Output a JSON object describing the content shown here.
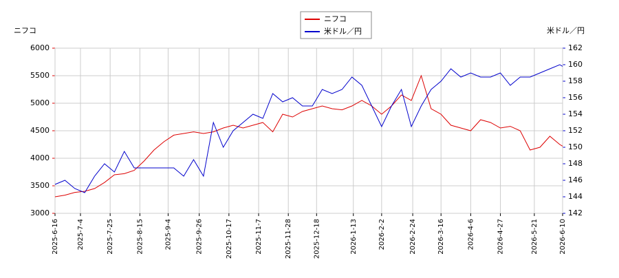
{
  "chart_data": {
    "type": "line",
    "y_label": "ニフコ",
    "y2_label": "米ドル／円",
    "x": [
      "2025-6-16",
      "2025-6-23",
      "2025-6-30",
      "2025-7-7",
      "2025-7-14",
      "2025-7-21",
      "2025-7-28",
      "2025-8-4",
      "2025-8-11",
      "2025-8-18",
      "2025-8-25",
      "2025-9-1",
      "2025-9-8",
      "2025-9-15",
      "2025-9-22",
      "2025-9-29",
      "2025-10-6",
      "2025-10-13",
      "2025-10-20",
      "2025-10-27",
      "2025-11-3",
      "2025-11-10",
      "2025-11-17",
      "2025-11-24",
      "2025-12-1",
      "2025-12-8",
      "2025-12-15",
      "2025-12-22",
      "2025-12-29",
      "2026-1-5",
      "2026-1-12",
      "2026-1-19",
      "2026-1-26",
      "2026-2-2",
      "2026-2-9",
      "2026-2-16",
      "2026-2-23",
      "2026-3-2",
      "2026-3-9",
      "2026-3-16",
      "2026-3-23",
      "2026-3-30",
      "2026-4-6",
      "2026-4-13",
      "2026-4-20",
      "2026-4-27",
      "2026-5-4",
      "2026-5-11",
      "2026-5-18",
      "2026-5-25",
      "2026-6-1",
      "2026-6-8",
      "2026-6-10"
    ],
    "series": [
      {
        "name": "ニフコ",
        "color": "#dd0000",
        "values": [
          3300,
          3330,
          3380,
          3400,
          3450,
          3560,
          3700,
          3720,
          3780,
          3950,
          4150,
          4300,
          4420,
          4450,
          4480,
          4450,
          4480,
          4550,
          4600,
          4550,
          4600,
          4650,
          4480,
          4800,
          4750,
          4850,
          4900,
          4950,
          4900,
          4880,
          4950,
          5050,
          4950,
          4800,
          4950,
          5150,
          5050,
          5500,
          4900,
          4800,
          4600,
          4550,
          4500,
          4700,
          4650,
          4550,
          4580,
          4500,
          4150,
          4200,
          4400,
          4250,
          4220
        ]
      },
      {
        "name": "米ドル／円",
        "color": "#0000cc",
        "axis": "y2",
        "values": [
          145.5,
          146,
          145,
          144.5,
          146.5,
          148,
          147,
          149.5,
          147.5,
          147.5,
          147.5,
          147.5,
          147.5,
          146.5,
          148.5,
          146.5,
          153,
          150,
          152,
          153,
          154,
          153.5,
          156.5,
          155.5,
          156,
          155,
          155,
          157,
          156.5,
          157,
          158.5,
          157.5,
          155,
          152.5,
          155,
          157,
          152.5,
          155,
          157,
          158,
          159.5,
          158.5,
          159,
          158.5,
          158.5,
          159,
          157.5,
          158.5,
          158.5,
          159,
          159.5,
          160,
          159.8
        ]
      }
    ],
    "xlim": [
      "2025-6-16",
      "2026-6-10"
    ],
    "xticks": [
      "2025-6-16",
      "2025-7-4",
      "2025-7-25",
      "2025-8-15",
      "2025-9-4",
      "2025-9-26",
      "2025-10-17",
      "2025-11-7",
      "2025-11-28",
      "2025-12-18",
      "2026-1-13",
      "2026-2-2",
      "2026-2-24",
      "2026-3-16",
      "2026-4-6",
      "2026-4-27",
      "2026-5-21",
      "2026-6-10"
    ],
    "ylim": [
      3000,
      6000
    ],
    "yticks": [
      3000,
      3500,
      4000,
      4500,
      5000,
      5500,
      6000
    ],
    "y2lim": [
      142,
      162
    ],
    "y2ticks": [
      142,
      144,
      146,
      148,
      150,
      152,
      154,
      156,
      158,
      160,
      162
    ],
    "grid": true
  }
}
